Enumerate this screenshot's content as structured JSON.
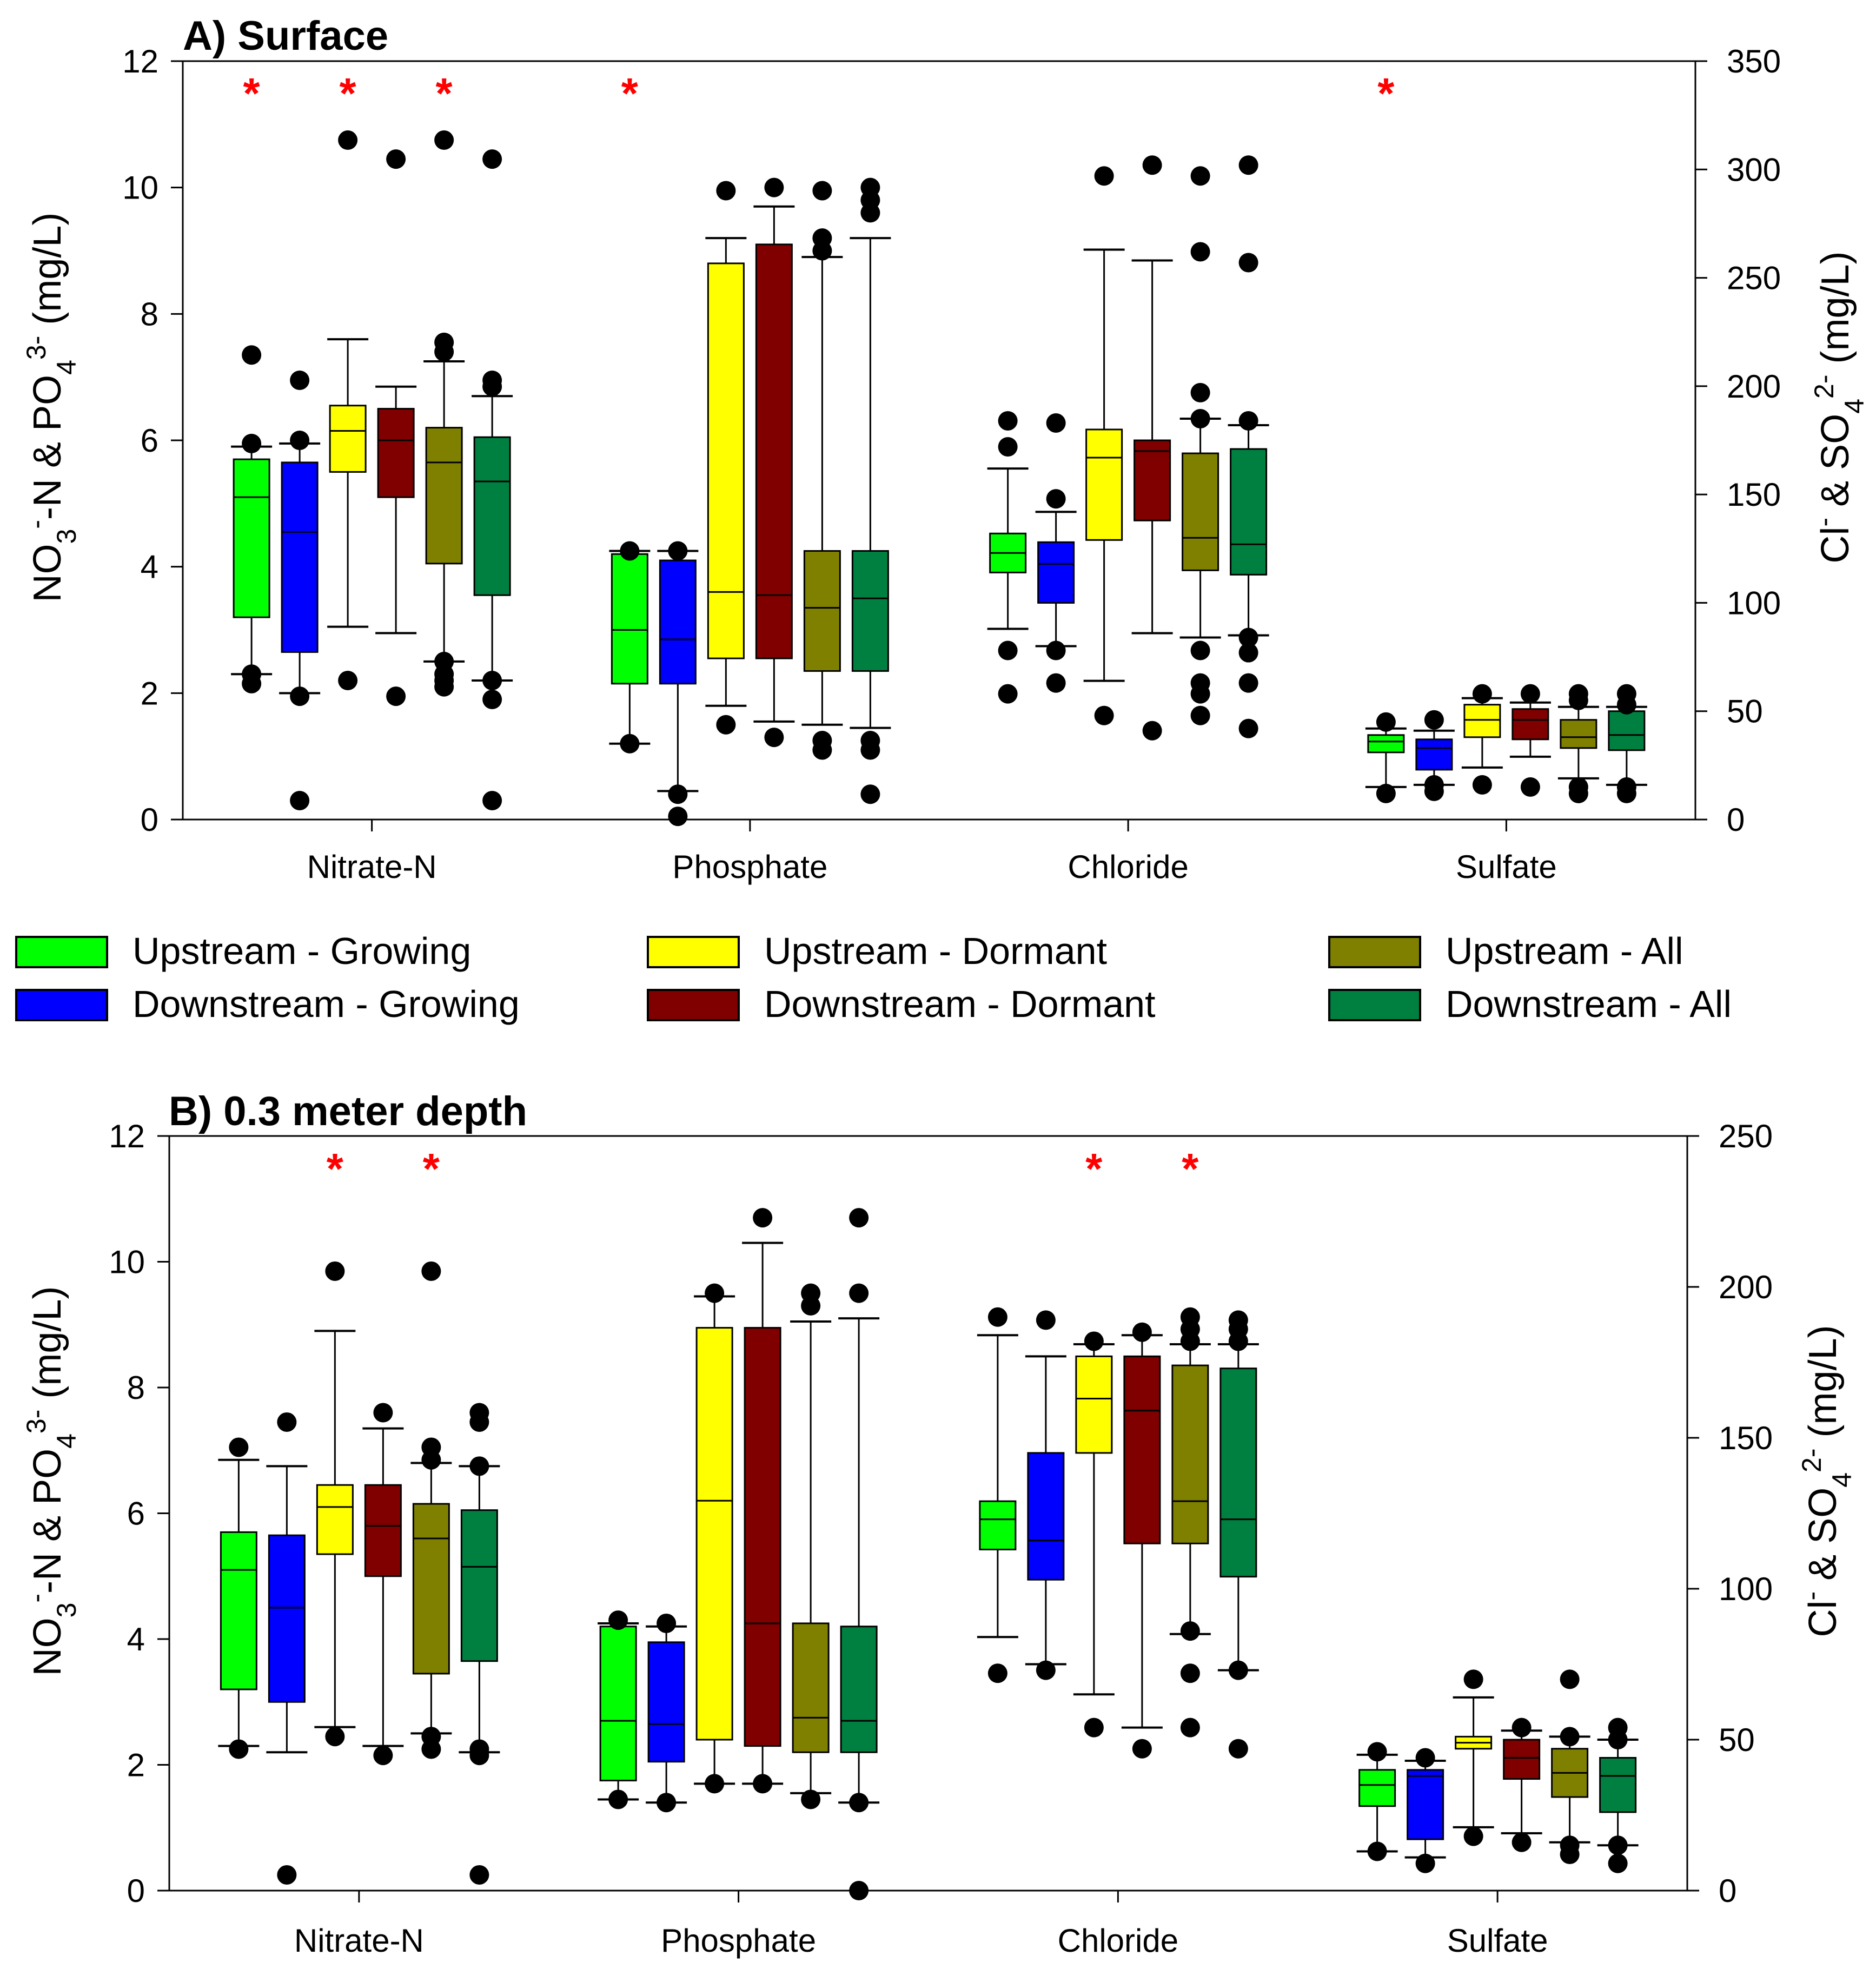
{
  "legend": [
    {
      "label": "Upstream - Growing",
      "color": "#00ff00"
    },
    {
      "label": "Downstream - Growing",
      "color": "#0000ff"
    },
    {
      "label": "Upstream - Dormant",
      "color": "#ffff00"
    },
    {
      "label": "Downstream - Dormant",
      "color": "#800000"
    },
    {
      "label": "Upstream - All",
      "color": "#808000"
    },
    {
      "label": "Downstream - All",
      "color": "#008040"
    }
  ],
  "chart_data": [
    {
      "type": "box",
      "title": "A) Surface",
      "categories": [
        "Nitrate-N",
        "Phosphate",
        "Chloride",
        "Sulfate"
      ],
      "ylabel_left": "NO3--N & PO43- (mg/L)",
      "ylabel_right": "Cl- & SO42- (mg/L)",
      "ylim_left": [
        0,
        12
      ],
      "ylim_right": [
        0,
        350
      ],
      "yticks_left": [
        "0",
        "2",
        "4",
        "6",
        "8",
        "10",
        "12"
      ],
      "yticks_right": [
        "0",
        "50",
        "100",
        "150",
        "200",
        "250",
        "300",
        "350"
      ],
      "significance_marker": "*",
      "significant_boxes": [
        [
          0,
          0
        ],
        [
          0,
          2
        ],
        [
          0,
          4
        ],
        [
          1,
          0
        ],
        [
          3,
          0
        ]
      ],
      "boxes": [
        [
          {
            "min": 2.3,
            "q1": 3.2,
            "median": 5.1,
            "q3": 5.7,
            "max": 5.9,
            "outliers": [
              2.15,
              2.3,
              5.95,
              7.35
            ]
          },
          {
            "min": 2.0,
            "q1": 2.65,
            "median": 4.55,
            "q3": 5.65,
            "max": 5.95,
            "outliers": [
              0.3,
              1.95,
              6.0,
              6.95
            ]
          },
          {
            "min": 3.05,
            "q1": 5.5,
            "median": 6.15,
            "q3": 6.55,
            "max": 7.6,
            "outliers": [
              2.2,
              10.75
            ]
          },
          {
            "min": 2.95,
            "q1": 5.1,
            "median": 6.0,
            "q3": 6.5,
            "max": 6.85,
            "outliers": [
              1.95,
              10.45
            ]
          },
          {
            "min": 2.5,
            "q1": 4.05,
            "median": 5.65,
            "q3": 6.2,
            "max": 7.25,
            "outliers": [
              2.1,
              2.2,
              2.3,
              2.5,
              7.4,
              7.55,
              10.75
            ]
          },
          {
            "min": 2.2,
            "q1": 3.55,
            "median": 5.35,
            "q3": 6.05,
            "max": 6.7,
            "outliers": [
              0.3,
              1.9,
              2.2,
              6.85,
              6.95,
              10.45
            ]
          }
        ],
        [
          {
            "min": 1.2,
            "q1": 2.15,
            "median": 3.0,
            "q3": 4.2,
            "max": 4.25,
            "outliers": [
              1.2,
              4.25
            ]
          },
          {
            "min": 0.45,
            "q1": 2.15,
            "median": 2.85,
            "q3": 4.1,
            "max": 4.25,
            "outliers": [
              0.05,
              0.4,
              4.25
            ]
          },
          {
            "min": 1.8,
            "q1": 2.55,
            "median": 3.6,
            "q3": 8.8,
            "max": 9.2,
            "outliers": [
              1.5,
              9.95
            ]
          },
          {
            "min": 1.55,
            "q1": 2.55,
            "median": 3.55,
            "q3": 9.1,
            "max": 9.7,
            "outliers": [
              1.3,
              10.0
            ]
          },
          {
            "min": 1.5,
            "q1": 2.35,
            "median": 3.35,
            "q3": 4.25,
            "max": 8.9,
            "outliers": [
              1.1,
              1.25,
              9.0,
              9.2,
              9.95
            ]
          },
          {
            "min": 1.45,
            "q1": 2.35,
            "median": 3.5,
            "q3": 4.25,
            "max": 9.2,
            "outliers": [
              0.4,
              1.1,
              1.25,
              9.6,
              9.8,
              10.0
            ]
          }
        ],
        [
          {
            "min": 88,
            "q1": 114,
            "median": 123,
            "q3": 132,
            "max": 162,
            "outliers": [
              58,
              78,
              172,
              184
            ]
          },
          {
            "min": 80,
            "q1": 100,
            "median": 118,
            "q3": 128,
            "max": 142,
            "outliers": [
              63,
              78,
              148,
              183
            ]
          },
          {
            "min": 64,
            "q1": 129,
            "median": 167,
            "q3": 180,
            "max": 263,
            "outliers": [
              48,
              297
            ]
          },
          {
            "min": 86,
            "q1": 138,
            "median": 170,
            "q3": 175,
            "max": 258,
            "outliers": [
              41,
              302
            ]
          },
          {
            "min": 84,
            "q1": 115,
            "median": 130,
            "q3": 169,
            "max": 185,
            "outliers": [
              48,
              58,
              63,
              78,
              185,
              197,
              262,
              297
            ]
          },
          {
            "min": 85,
            "q1": 113,
            "median": 127,
            "q3": 171,
            "max": 182,
            "outliers": [
              42,
              63,
              77,
              84,
              184,
              257,
              302
            ]
          }
        ],
        [
          {
            "min": 15,
            "q1": 31,
            "median": 36,
            "q3": 39,
            "max": 42,
            "outliers": [
              12,
              45
            ]
          },
          {
            "min": 16,
            "q1": 23,
            "median": 33,
            "q3": 37,
            "max": 41,
            "outliers": [
              13,
              16,
              46
            ]
          },
          {
            "min": 24,
            "q1": 38,
            "median": 46,
            "q3": 53,
            "max": 56,
            "outliers": [
              16,
              58
            ]
          },
          {
            "min": 29,
            "q1": 37,
            "median": 46,
            "q3": 51,
            "max": 54,
            "outliers": [
              15,
              58
            ]
          },
          {
            "min": 19,
            "q1": 33,
            "median": 38,
            "q3": 46,
            "max": 52,
            "outliers": [
              12,
              15,
              55,
              58
            ]
          },
          {
            "min": 16,
            "q1": 32,
            "median": 39,
            "q3": 50,
            "max": 52,
            "outliers": [
              12,
              15,
              53,
              58
            ]
          }
        ]
      ]
    },
    {
      "type": "box",
      "title": "B) 0.3 meter depth",
      "categories": [
        "Nitrate-N",
        "Phosphate",
        "Chloride",
        "Sulfate"
      ],
      "ylabel_left": "NO3--N & PO43- (mg/L)",
      "ylabel_right": "Cl- & SO42- (mg/L)",
      "ylim_left": [
        0,
        12
      ],
      "ylim_right": [
        0,
        250
      ],
      "yticks_left": [
        "0",
        "2",
        "4",
        "6",
        "8",
        "10",
        "12"
      ],
      "yticks_right": [
        "0",
        "50",
        "100",
        "150",
        "200",
        "250"
      ],
      "significance_marker": "*",
      "significant_boxes": [
        [
          0,
          2
        ],
        [
          0,
          4
        ],
        [
          2,
          2
        ],
        [
          2,
          4
        ]
      ],
      "boxes": [
        [
          {
            "min": 2.3,
            "q1": 3.2,
            "median": 5.1,
            "q3": 5.7,
            "max": 6.85,
            "outliers": [
              2.25,
              7.05
            ]
          },
          {
            "min": 2.2,
            "q1": 3.0,
            "median": 4.5,
            "q3": 5.65,
            "max": 6.75,
            "outliers": [
              0.25,
              7.45
            ]
          },
          {
            "min": 2.6,
            "q1": 5.35,
            "median": 6.1,
            "q3": 6.45,
            "max": 8.9,
            "outliers": [
              2.45,
              9.85
            ]
          },
          {
            "min": 2.3,
            "q1": 5.0,
            "median": 5.8,
            "q3": 6.45,
            "max": 7.35,
            "outliers": [
              2.15,
              7.6
            ]
          },
          {
            "min": 2.5,
            "q1": 3.45,
            "median": 5.6,
            "q3": 6.15,
            "max": 6.8,
            "outliers": [
              2.25,
              2.45,
              6.85,
              7.05,
              9.85
            ]
          },
          {
            "min": 2.2,
            "q1": 3.65,
            "median": 5.15,
            "q3": 6.05,
            "max": 6.75,
            "outliers": [
              0.25,
              2.15,
              2.25,
              6.75,
              7.45,
              7.6
            ]
          }
        ],
        [
          {
            "min": 1.45,
            "q1": 1.75,
            "median": 2.7,
            "q3": 4.2,
            "max": 4.25,
            "outliers": [
              1.45,
              4.3
            ]
          },
          {
            "min": 1.4,
            "q1": 2.05,
            "median": 2.65,
            "q3": 3.95,
            "max": 4.2,
            "outliers": [
              1.4,
              4.25
            ]
          },
          {
            "min": 1.7,
            "q1": 2.4,
            "median": 6.2,
            "q3": 8.95,
            "max": 9.45,
            "outliers": [
              1.7,
              9.5
            ]
          },
          {
            "min": 1.7,
            "q1": 2.3,
            "median": 4.25,
            "q3": 8.95,
            "max": 10.3,
            "outliers": [
              1.7,
              10.7
            ]
          },
          {
            "min": 1.55,
            "q1": 2.2,
            "median": 2.75,
            "q3": 4.25,
            "max": 9.05,
            "outliers": [
              1.45,
              9.3,
              9.5
            ]
          },
          {
            "min": 1.4,
            "q1": 2.2,
            "median": 2.7,
            "q3": 4.2,
            "max": 9.1,
            "outliers": [
              0.0,
              1.4,
              9.5,
              10.7
            ]
          }
        ],
        [
          {
            "min": 84,
            "q1": 113,
            "median": 123,
            "q3": 129,
            "max": 184,
            "outliers": [
              72,
              190
            ]
          },
          {
            "min": 75,
            "q1": 103,
            "median": 116,
            "q3": 145,
            "max": 177,
            "outliers": [
              73,
              189
            ]
          },
          {
            "min": 65,
            "q1": 145,
            "median": 163,
            "q3": 177,
            "max": 181,
            "outliers": [
              54,
              182
            ]
          },
          {
            "min": 54,
            "q1": 115,
            "median": 159,
            "q3": 177,
            "max": 184,
            "outliers": [
              47,
              185
            ]
          },
          {
            "min": 85,
            "q1": 115,
            "median": 129,
            "q3": 174,
            "max": 181,
            "outliers": [
              54,
              72,
              86,
              182,
              186,
              190
            ]
          },
          {
            "min": 73,
            "q1": 104,
            "median": 123,
            "q3": 173,
            "max": 181,
            "outliers": [
              47,
              73,
              182,
              186,
              189
            ]
          }
        ],
        [
          {
            "min": 13,
            "q1": 28,
            "median": 35,
            "q3": 40,
            "max": 45,
            "outliers": [
              13,
              46
            ]
          },
          {
            "min": 11,
            "q1": 17,
            "median": 38,
            "q3": 40,
            "max": 43,
            "outliers": [
              9,
              44
            ]
          },
          {
            "min": 21,
            "q1": 47,
            "median": 49,
            "q3": 51,
            "max": 64,
            "outliers": [
              18,
              70
            ]
          },
          {
            "min": 19,
            "q1": 37,
            "median": 44,
            "q3": 50,
            "max": 53,
            "outliers": [
              16,
              54
            ]
          },
          {
            "min": 16,
            "q1": 31,
            "median": 39,
            "q3": 47,
            "max": 51,
            "outliers": [
              12,
              15,
              51,
              70
            ]
          },
          {
            "min": 15,
            "q1": 26,
            "median": 38,
            "q3": 44,
            "max": 50,
            "outliers": [
              9,
              15,
              50,
              54
            ]
          }
        ]
      ]
    }
  ]
}
